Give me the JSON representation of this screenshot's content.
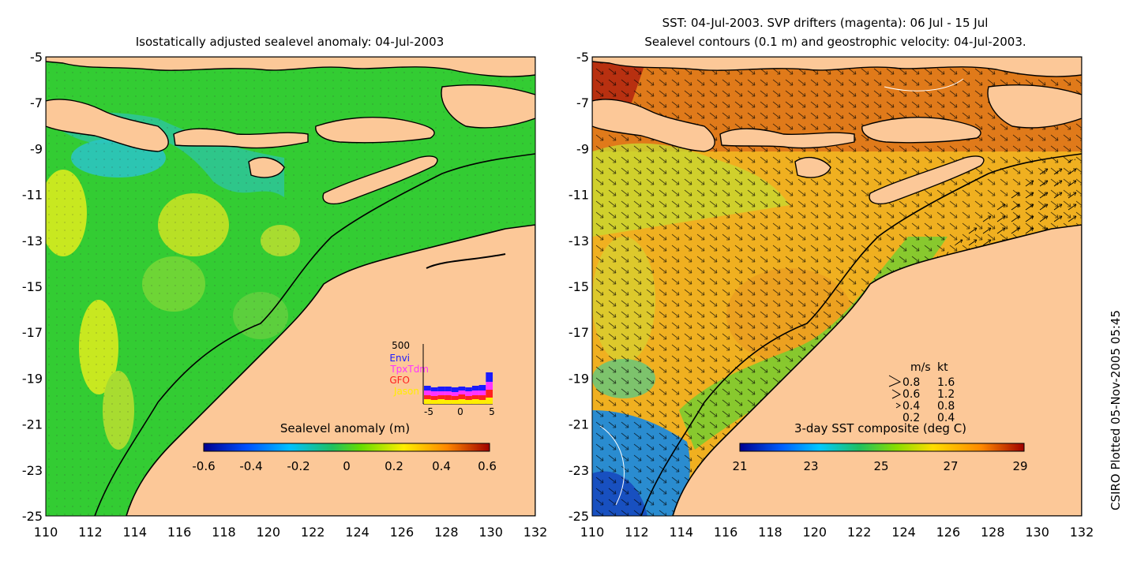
{
  "left_panel": {
    "title": "Isostatically adjusted sealevel anomaly: 04-Jul-2003",
    "colorbar": {
      "label": "Sealevel anomaly (m)",
      "ticks": [
        "-0.6",
        "-0.4",
        "-0.2",
        "0",
        "0.2",
        "0.4",
        "0.6"
      ]
    },
    "histogram": {
      "ymax_label": "500",
      "legend": [
        {
          "name": "Envi",
          "color": "#1a1aff"
        },
        {
          "name": "TpxTdm",
          "color": "#ff33ff"
        },
        {
          "name": "GFO",
          "color": "#ff2020"
        },
        {
          "name": "Jason",
          "color": "#ffee00"
        }
      ],
      "xticks": [
        "-5",
        "0",
        "5"
      ]
    }
  },
  "right_panel": {
    "title_line1": "SST: 04-Jul-2003. SVP drifters (magenta): 06 Jul - 15 Jul",
    "title_line2": "Sealevel contours (0.1 m) and geostrophic velocity: 04-Jul-2003.",
    "colorbar": {
      "label": "3-day SST composite (deg C)",
      "ticks": [
        "21",
        "23",
        "25",
        "27",
        "29"
      ]
    },
    "velocity_legend": {
      "header_ms": "m/s",
      "header_kt": "kt",
      "rows": [
        {
          "ms": "0.8",
          "kt": "1.6"
        },
        {
          "ms": "0.6",
          "kt": "1.2"
        },
        {
          "ms": "0.4",
          "kt": "0.8"
        },
        {
          "ms": "0.2",
          "kt": "0.4"
        }
      ]
    }
  },
  "axes": {
    "y_labels": [
      "-5",
      "-7",
      "-9",
      "-11",
      "-13",
      "-15",
      "-17",
      "-19",
      "-21",
      "-23",
      "-25"
    ],
    "x_labels": [
      "110",
      "112",
      "114",
      "116",
      "118",
      "120",
      "122",
      "124",
      "126",
      "128",
      "130",
      "132"
    ]
  },
  "credit": "CSIRO Plotted 05-Nov-2005 05:45",
  "colors": {
    "land": "#fcc898",
    "sla_base": "#33cc33",
    "sst_base": "#f0b020"
  }
}
